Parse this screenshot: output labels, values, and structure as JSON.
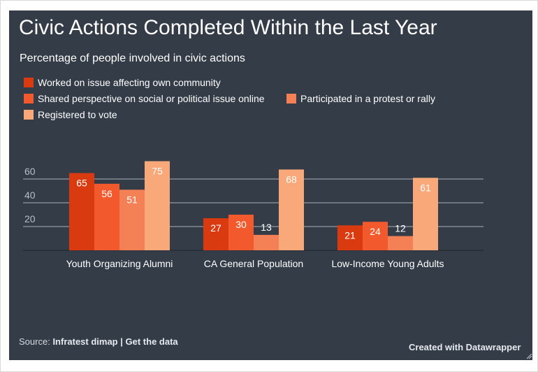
{
  "title": "Civic Actions Completed Within the Last Year",
  "subtitle": "Percentage of people involved in civic actions",
  "colors": {
    "background": "#343c48",
    "gridline": "#aab0b8",
    "series": [
      "#d93a0f",
      "#f25a2e",
      "#f48055",
      "#f9a87a"
    ]
  },
  "legend": [
    "Worked on issue affecting own community",
    "Shared perspective on social or political issue online",
    "Participated in a protest or rally",
    "Registered to vote"
  ],
  "chart_data": {
    "type": "bar",
    "categories": [
      "Youth Organizing Alumni",
      "CA General Population",
      "Low-Income Young Adults"
    ],
    "series": [
      {
        "name": "Worked on issue affecting own community",
        "values": [
          65,
          27,
          21
        ]
      },
      {
        "name": "Shared perspective on social or political issue online",
        "values": [
          56,
          30,
          24
        ]
      },
      {
        "name": "Participated in a protest or rally",
        "values": [
          51,
          13,
          12
        ]
      },
      {
        "name": "Registered to vote",
        "values": [
          75,
          68,
          61
        ]
      }
    ],
    "y_ticks": [
      "20",
      "40",
      "60"
    ],
    "ylim": [
      0,
      80
    ],
    "grid": true,
    "legend_position": "top-left"
  },
  "footer": {
    "source_label": "Source:",
    "source_name": "Infratest dimap",
    "separator": "|",
    "get_data": "Get the data",
    "credit": "Created with Datawrapper"
  }
}
